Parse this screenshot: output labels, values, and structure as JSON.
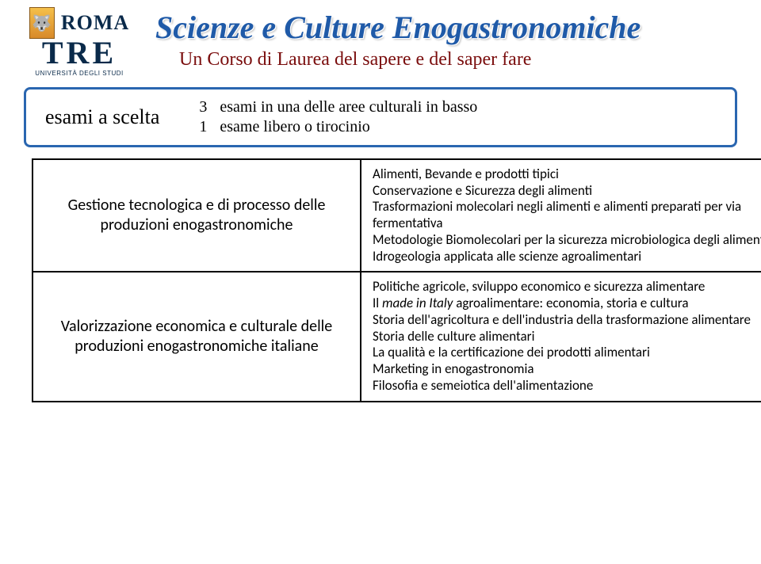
{
  "logo": {
    "wolf_glyph": "🐺",
    "roma": "ROMA",
    "tre": "TRE",
    "uni": "UNIVERSITÀ DEGLI STUDI"
  },
  "titles": {
    "main": "Scienze e Culture Enogastronomiche",
    "sub": "Un Corso di Laurea del sapere e del saper fare"
  },
  "box": {
    "label": "esami a scelta",
    "rows": [
      {
        "num": "3",
        "text": "esami in una delle aree culturali in basso"
      },
      {
        "num": "1",
        "text": "esame libero o tirocinio"
      }
    ]
  },
  "table": {
    "rows": [
      {
        "left": "Gestione tecnologica e di processo delle produzioni enogastronomiche",
        "right_items": [
          "Alimenti, Bevande e prodotti tipici",
          "Conservazione e Sicurezza degli alimenti",
          "Trasformazioni molecolari negli alimenti e alimenti preparati per via fermentativa",
          "Metodologie Biomolecolari per la sicurezza microbiologica degli alimenti",
          "Idrogeologia applicata alle scienze agroalimentari"
        ]
      },
      {
        "left": "Valorizzazione economica e culturale delle produzioni enogastronomiche italiane",
        "right_items": [
          "Politiche agricole, sviluppo economico e sicurezza alimentare",
          "Il <em>made in Italy</em> agroalimentare: economia, storia e cultura",
          "Storia dell'agricoltura e dell'industria della trasformazione alimentare",
          "Storia delle culture alimentari",
          "La qualità e la certificazione dei prodotti alimentari",
          "Marketing in enogastronomia",
          "Filosofia e semeiotica dell'alimentazione"
        ]
      }
    ]
  },
  "colors": {
    "title_blue": "#1f5aa8",
    "subtitle_red": "#7a0d0d",
    "border_blue": "#2a66b0",
    "table_border": "#000000",
    "logo_navy": "#0a2a4a"
  }
}
